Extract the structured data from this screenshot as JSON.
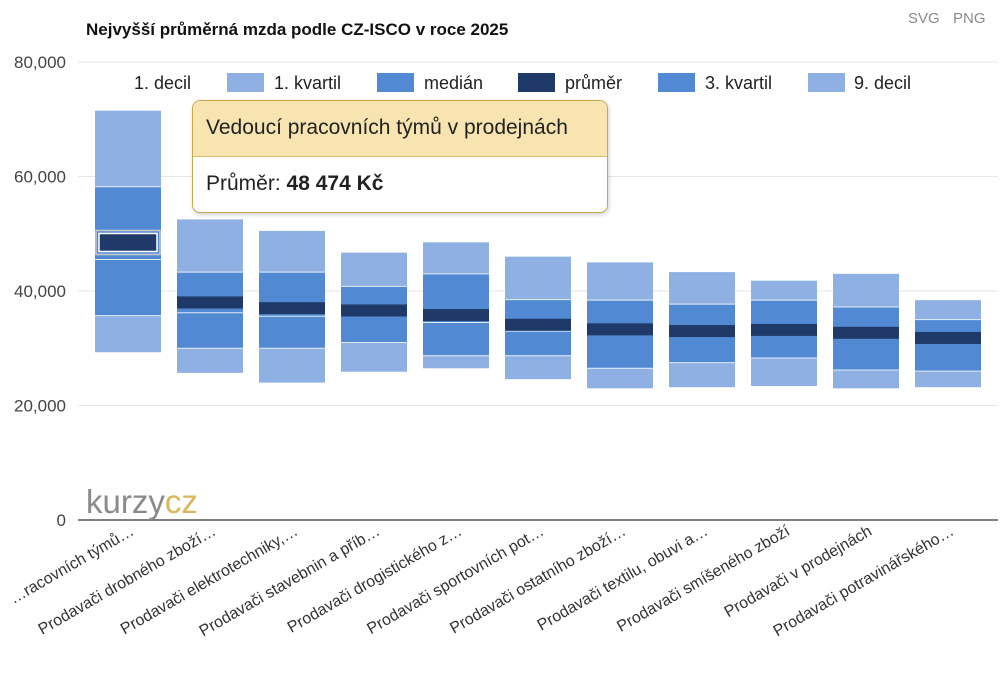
{
  "export": {
    "svg_label": "SVG",
    "png_label": "PNG"
  },
  "logo": {
    "part1": "kurzy",
    "part2": "cz"
  },
  "tooltip": {
    "title": "Vedoucí pracovních týmů v prodejnách",
    "label": "Průměr:",
    "value": "48 474 Kč"
  },
  "colors": {
    "decil": "#8fb0e2",
    "kvartil": "#5189d3",
    "prumer": "#1f3a68",
    "grid": "#e6e6e6",
    "tooltip_bg": "#f7e4b0",
    "tooltip_border": "#c9a84a"
  },
  "chart_data": {
    "type": "bar",
    "subtype": "stacked-range",
    "title": "Nejvyšší průměrná mzda podle CZ-ISCO v roce 2025",
    "ylim": [
      0,
      80000
    ],
    "yticks": [
      0,
      20000,
      40000,
      60000,
      80000
    ],
    "ytick_labels": [
      "0",
      "20,000",
      "40,000",
      "60,000",
      "80,000"
    ],
    "grid": true,
    "legend_position": "top",
    "legend": [
      "1. decil",
      "1. kvartil",
      "medián",
      "průměr",
      "3. kvartil",
      "9. decil"
    ],
    "categories": [
      "…racovních týmů…",
      "Prodavači drobného zboží…",
      "Prodavači elektrotechniky,…",
      "Prodavači stavebnin a příb…",
      "Prodavači drogistického z…",
      "Prodavači sportovních pot…",
      "Prodavači ostatního zboží…",
      "Prodavači textilu, obuvi a…",
      "Prodavači smíšeného zboží",
      "Prodavači v prodejnách",
      "Prodavači potravinářského…"
    ],
    "series": [
      {
        "name": "1. decil",
        "values": [
          29300,
          25700,
          24000,
          25900,
          26500,
          24600,
          23000,
          23200,
          23400,
          23000,
          23200
        ]
      },
      {
        "name": "1. kvartil",
        "values": [
          35700,
          30000,
          30000,
          31000,
          28700,
          28700,
          26500,
          27500,
          28300,
          26200,
          26000
        ]
      },
      {
        "name": "medián",
        "values": [
          45500,
          36200,
          35600,
          35900,
          34500,
          33000,
          32500,
          32800,
          33000,
          32000,
          31500
        ]
      },
      {
        "name": "průměr",
        "values": [
          48474,
          38000,
          37000,
          36600,
          35800,
          34100,
          33300,
          33000,
          33200,
          32700,
          31800
        ]
      },
      {
        "name": "3. kvartil",
        "values": [
          58200,
          43300,
          43300,
          40800,
          43000,
          38500,
          38400,
          37700,
          38400,
          37200,
          35000
        ]
      },
      {
        "name": "9. decil",
        "values": [
          71500,
          52500,
          50500,
          46700,
          48500,
          46000,
          45000,
          43300,
          41800,
          43000,
          38400
        ]
      }
    ],
    "highlighted_category": 0
  }
}
